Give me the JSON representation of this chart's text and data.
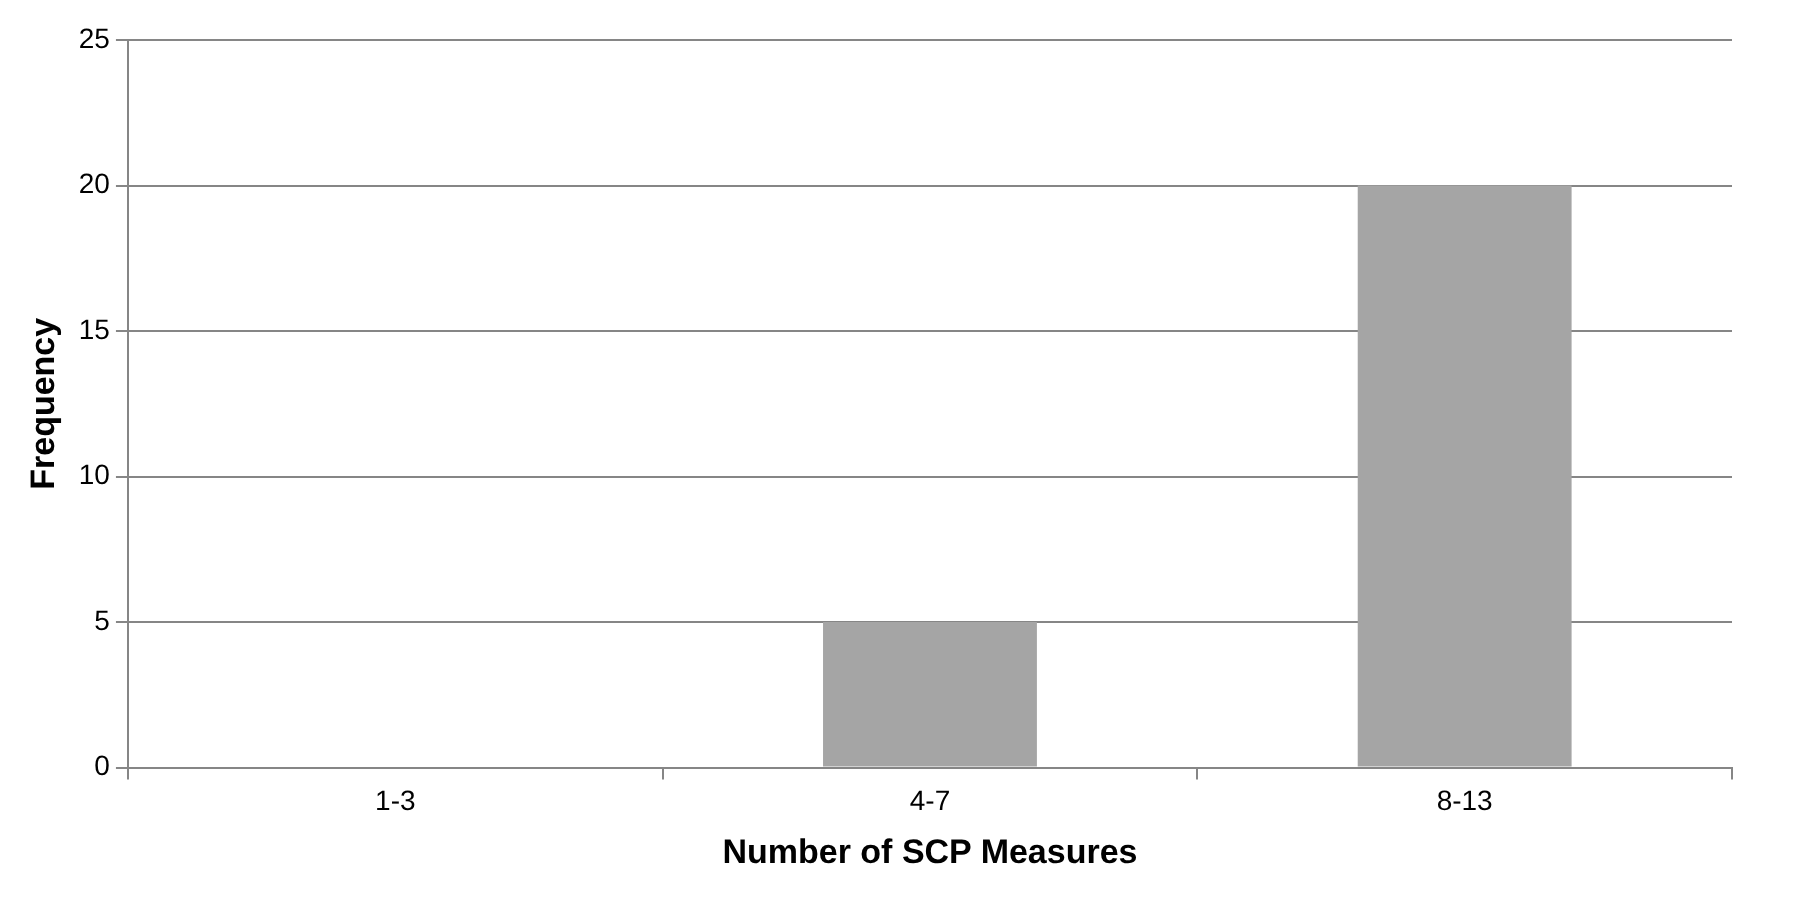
{
  "chart_data": {
    "type": "bar",
    "xlabel": "Number of SCP Measures",
    "ylabel": "Frequency",
    "categories": [
      "1-3",
      "4-7",
      "8-13"
    ],
    "values": [
      0,
      5,
      20
    ],
    "color": "#a5a5a5",
    "ylim": [
      0,
      25
    ],
    "yticks": [
      0,
      5,
      10,
      15,
      20,
      25
    ],
    "grid": "y",
    "legend": false
  }
}
